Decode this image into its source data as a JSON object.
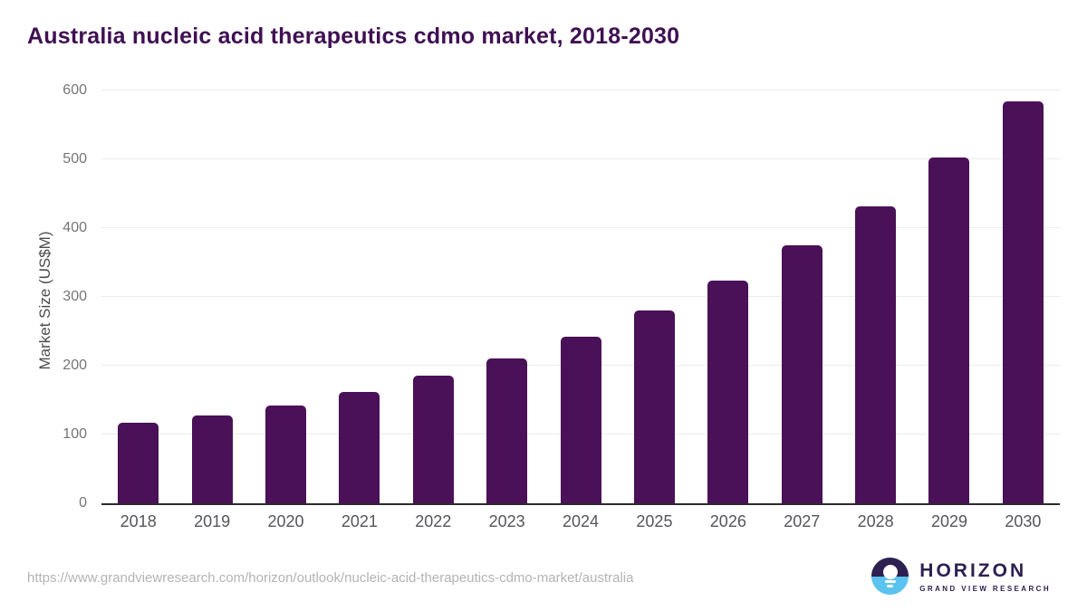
{
  "header": {
    "title": "Australia nucleic acid therapeutics cdmo market, 2018-2030"
  },
  "chart_data": {
    "type": "bar",
    "title": "Australia nucleic acid therapeutics cdmo market, 2018-2030",
    "categories": [
      "2018",
      "2019",
      "2020",
      "2021",
      "2022",
      "2023",
      "2024",
      "2025",
      "2026",
      "2027",
      "2028",
      "2029",
      "2030"
    ],
    "values": [
      117,
      128,
      142,
      162,
      185,
      211,
      242,
      280,
      324,
      375,
      432,
      502,
      584
    ],
    "xlabel": "",
    "ylabel": "Market Size (US$M)",
    "ylim": [
      0,
      600
    ],
    "yticks": [
      0,
      100,
      200,
      300,
      400,
      500,
      600
    ],
    "grid": "horizontal",
    "legend": "none",
    "bar_color": "#4a1158",
    "title_color": "#3f1053"
  },
  "footer": {
    "source_url": "https://www.grandviewresearch.com/horizon/outlook/nucleic-acid-therapeutics-cdmo-market/australia",
    "logo": {
      "name": "HORIZON",
      "tagline": "GRAND VIEW RESEARCH",
      "purple": "#2e2051",
      "blue": "#5ac3ef"
    }
  }
}
